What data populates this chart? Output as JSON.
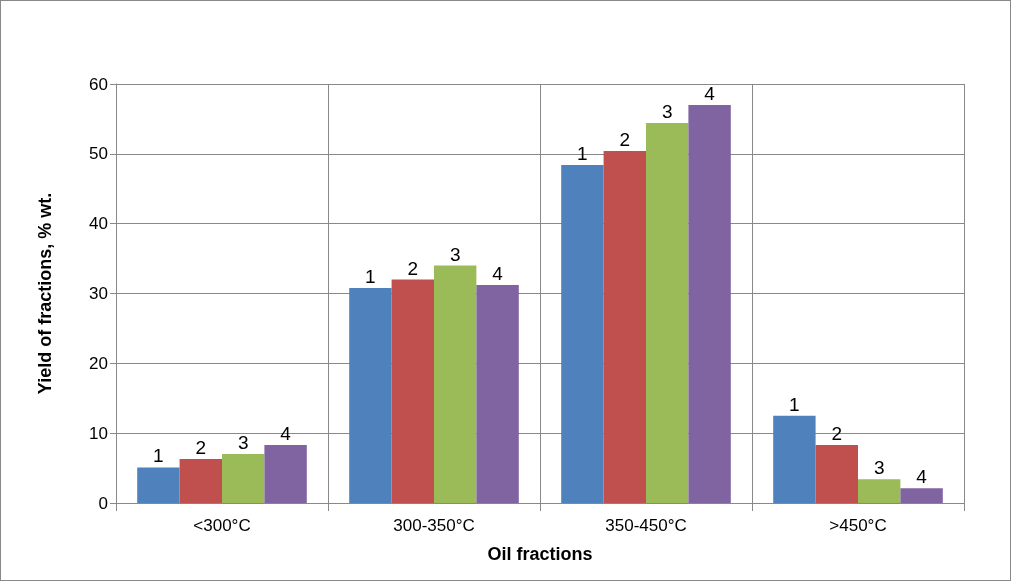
{
  "chart_data": {
    "type": "bar",
    "xlabel": "Oil fractions",
    "ylabel": "Yield of fractions, % wt.",
    "categories": [
      "<300°C",
      "300-350°C",
      "350-450°C",
      ">450°C"
    ],
    "series": [
      {
        "name": "1",
        "color": "#4f81bd",
        "values": [
          5.1,
          30.8,
          48.4,
          12.5
        ]
      },
      {
        "name": "2",
        "color": "#c0504d",
        "values": [
          6.3,
          32.0,
          50.4,
          8.3
        ]
      },
      {
        "name": "3",
        "color": "#9bbb59",
        "values": [
          7.0,
          34.0,
          54.4,
          3.4
        ]
      },
      {
        "name": "4",
        "color": "#8064a2",
        "values": [
          8.3,
          31.2,
          57.0,
          2.1
        ]
      }
    ],
    "ylim": [
      0,
      60
    ],
    "yticks": [
      0,
      10,
      20,
      30,
      40,
      50,
      60
    ],
    "grid": true,
    "legend": false
  }
}
